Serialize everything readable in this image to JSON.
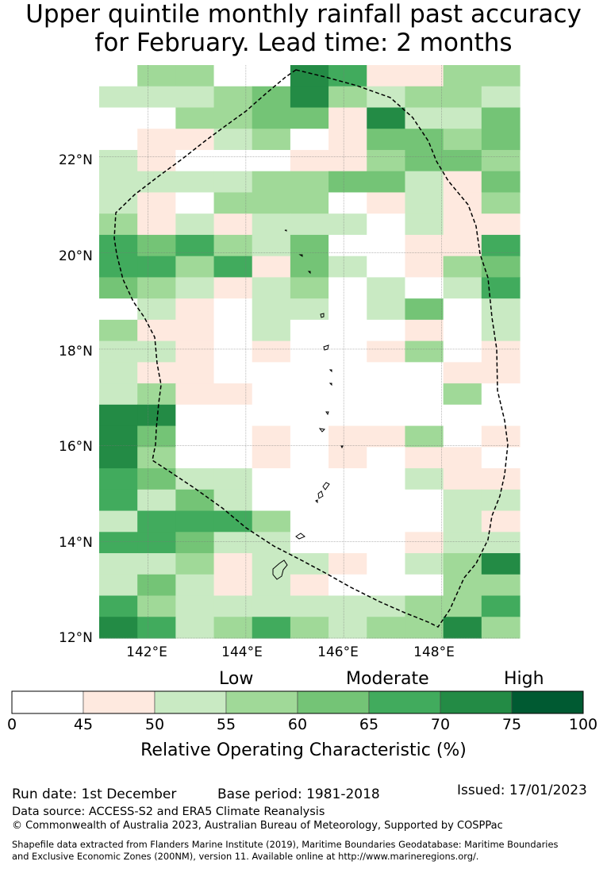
{
  "title": {
    "line1": "Upper quintile monthly rainfall past accuracy",
    "line2": "for February. Lead time: 2 months"
  },
  "map": {
    "lat_labels": [
      "22°N",
      "20°N",
      "18°N",
      "16°N",
      "14°N",
      "12°N"
    ],
    "lon_labels": [
      "142°E",
      "144°E",
      "146°E",
      "148°E"
    ],
    "lat_values": [
      22,
      20,
      18,
      16,
      14,
      12
    ],
    "lon_values": [
      142,
      144,
      146,
      148
    ],
    "extent": {
      "lon_min": 141.0,
      "lon_max": 149.6,
      "lat_min": 12.0,
      "lat_max": 23.9
    },
    "grid_rows_top_to_bottom": [
      "03300651133",
      "22234632332",
      "00334416224",
      "01123014434",
      "21000113443",
      "22223344214",
      "21033301213",
      "31212220211",
      "54532400115",
      "55351420134",
      "43212302025",
      "02102202402",
      "31102000102",
      "22101001301",
      "21100000011",
      "23110000030",
      "66000000000",
      "64001011301",
      "63001010110",
      "54220000211",
      "52420000022",
      "25553000021",
      "55422000122",
      "22312210236",
      "24212100033",
      "53222222335",
      "65235323363"
    ],
    "palette": [
      "#ffffff",
      "#fee9df",
      "#c9eac3",
      "#a0d998",
      "#74c476",
      "#41ab5d",
      "#238b45",
      "#005a32"
    ]
  },
  "colorbar": {
    "category_labels": [
      "Low",
      "Moderate",
      "High"
    ],
    "ticks": [
      "0",
      "45",
      "50",
      "55",
      "60",
      "65",
      "70",
      "75",
      "100"
    ],
    "label": "Relative Operating Characteristic (%)"
  },
  "footer": {
    "run_date": "Run date: 1st December",
    "base_period": "Base period: 1981-2018",
    "issued": "Issued: 17/01/2023",
    "data_source": "Data source: ACCESS-S2 and ERA5 Climate Reanalysis",
    "copyright": "© Commonwealth of Australia 2023, Australian Bureau of Meteorology, Supported by COSPPac",
    "shapefile_line1": "Shapefile data extracted from Flanders Marine Institute (2019), Maritime Boundaries Geodatabase: Maritime Boundaries",
    "shapefile_line2": "and Exclusive Economic Zones (200NM), version 11. Available online at http://www.marineregions.org/."
  }
}
